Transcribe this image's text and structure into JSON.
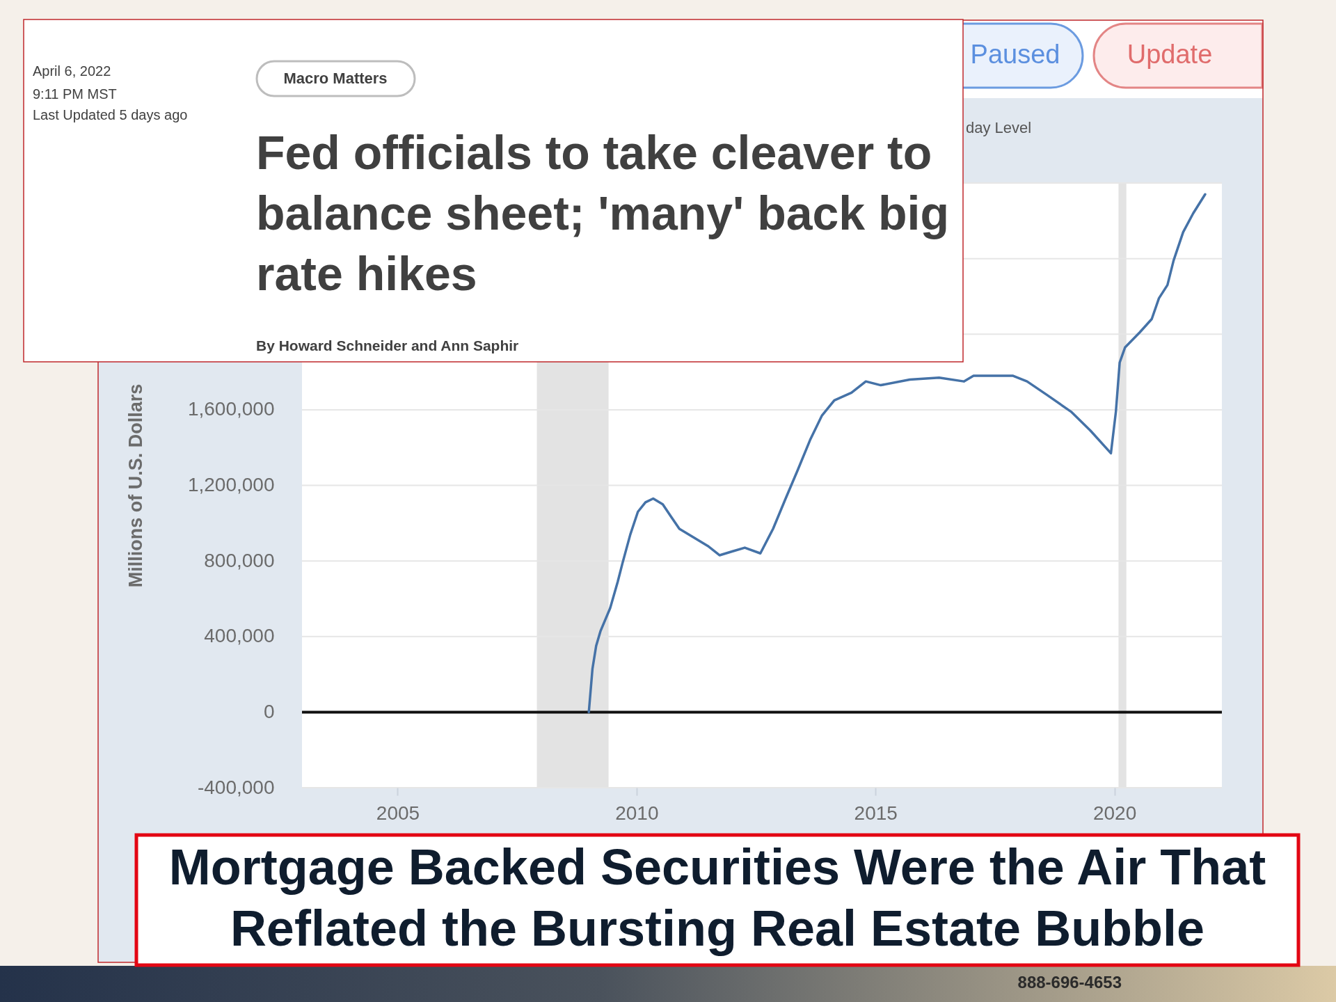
{
  "chart_data": {
    "type": "line",
    "title": "Mortgage Backed Securities Were the Air That Reflated the Bursting Real Estate Bubble",
    "ylabel": "Millions of U.S. Dollars",
    "annotations": [
      "April 6, 2022",
      "9:11 PM MST",
      "Last Updated 5 days ago",
      "Macro Matters",
      "Fed officials to take cleaver to balance sheet; 'many' back big rate hikes",
      "By Howard Schneider and Ann Saphir",
      "Paused",
      "Update",
      "day Level",
      "888-696-4653"
    ],
    "x": [
      "2009-01-01",
      "2009-01-29",
      "2009-02-26",
      "2009-04-01",
      "2009-06-13",
      "2009-08-10",
      "2009-09-16",
      "2009-11-14",
      "2010-01-11",
      "2010-03-10",
      "2010-05-08",
      "2010-07-20",
      "2010-09-16",
      "2010-11-24",
      "2011-02-27",
      "2011-06-28",
      "2011-09-27",
      "2012-01-01",
      "2012-04-07",
      "2012-08-04",
      "2012-11-09",
      "2013-02-13",
      "2013-05-16",
      "2013-08-19",
      "2013-11-18",
      "2014-02-20",
      "2014-07-01",
      "2014-10-19",
      "2015-02-10",
      "2015-09-20",
      "2016-05-01",
      "2016-11-06",
      "2017-01-19",
      "2017-11-14",
      "2018-03-04",
      "2018-07-31",
      "2019-02-03",
      "2019-07-01",
      "2019-12-05",
      "2020-01-12",
      "2020-02-10",
      "2020-03-22",
      "2020-07-13",
      "2020-10-12",
      "2020-12-06",
      "2021-02-09",
      "2021-03-28",
      "2021-06-09",
      "2021-08-25",
      "2021-11-24"
    ],
    "series": [
      {
        "color": "#4572a7",
        "values": [
          0,
          230000,
          350000,
          430000,
          550000,
          690000,
          790000,
          940000,
          1060000,
          1110000,
          1130000,
          1100000,
          1040000,
          970000,
          930000,
          880000,
          830000,
          850000,
          870000,
          840000,
          970000,
          1130000,
          1280000,
          1440000,
          1570000,
          1650000,
          1690000,
          1750000,
          1730000,
          1760000,
          1770000,
          1750000,
          1780000,
          1780000,
          1750000,
          1680000,
          1590000,
          1490000,
          1370000,
          1590000,
          1850000,
          1930000,
          2010000,
          2080000,
          2190000,
          2260000,
          2390000,
          2540000,
          2640000,
          2740000
        ]
      }
    ],
    "xlim": [
      "2003-01",
      "2022-04"
    ],
    "xticks": [
      "2005",
      "2010",
      "2015",
      "2020"
    ],
    "ylim": [
      -400000,
      2800000
    ],
    "yticks": [
      {
        "value": -400000,
        "label": "-400,000"
      },
      0,
      {
        "value": 400000,
        "label": "400,000"
      },
      {
        "value": 800000,
        "label": "800,000"
      },
      {
        "value": 1200000,
        "label": "1,200,000"
      },
      {
        "value": 1600000,
        "label": "1,600,000"
      },
      {
        "value": 2000000,
        "label": null
      },
      {
        "value": 2400000,
        "label": null
      },
      {
        "value": 2800000,
        "label": null
      }
    ],
    "ref_lines": [
      {
        "axis": "y",
        "value": 0,
        "color": "#111111"
      }
    ],
    "bands": [
      {
        "axis": "x",
        "from": "2007-12-01",
        "to": "2009-06-01",
        "color": "#e3e3e3"
      },
      {
        "axis": "x",
        "from": "2020-02-01",
        "to": "2020-04-01",
        "color": "#e3e3e3"
      }
    ],
    "grid": "y"
  }
}
